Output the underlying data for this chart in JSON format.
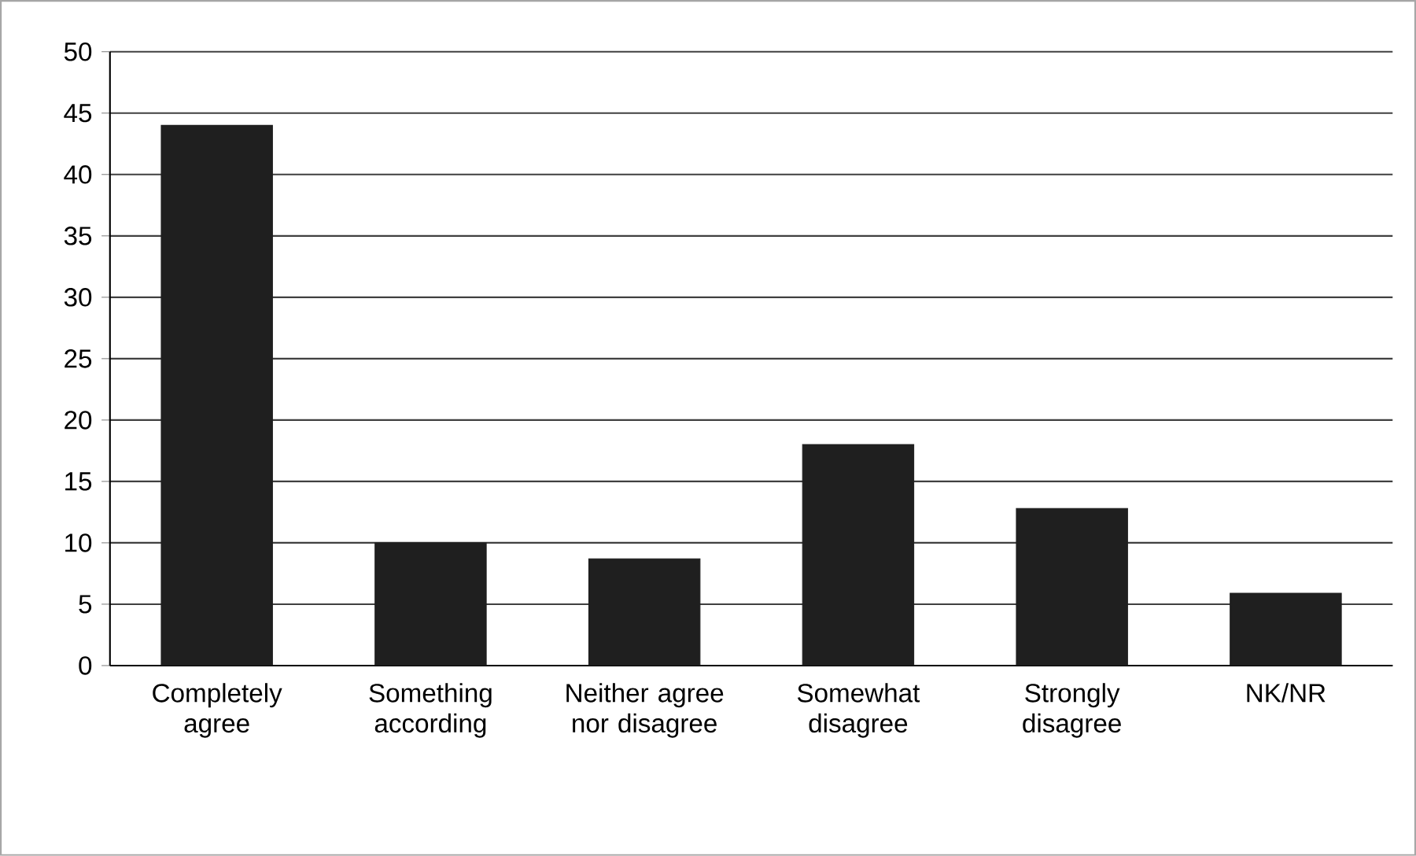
{
  "chart_data": {
    "type": "bar",
    "categories": [
      "Completely agree",
      "Something according",
      "Neither agree nor disagree",
      "Somewhat disagree",
      "Strongly disagree",
      "NK/NR"
    ],
    "values": [
      44,
      10,
      8.7,
      18,
      12.8,
      5.9
    ],
    "color": "#1f1f1f",
    "ylim": [
      0,
      50
    ],
    "yticks": [
      0,
      5,
      10,
      15,
      20,
      25,
      30,
      35,
      40,
      45,
      50
    ],
    "grid": "y"
  }
}
